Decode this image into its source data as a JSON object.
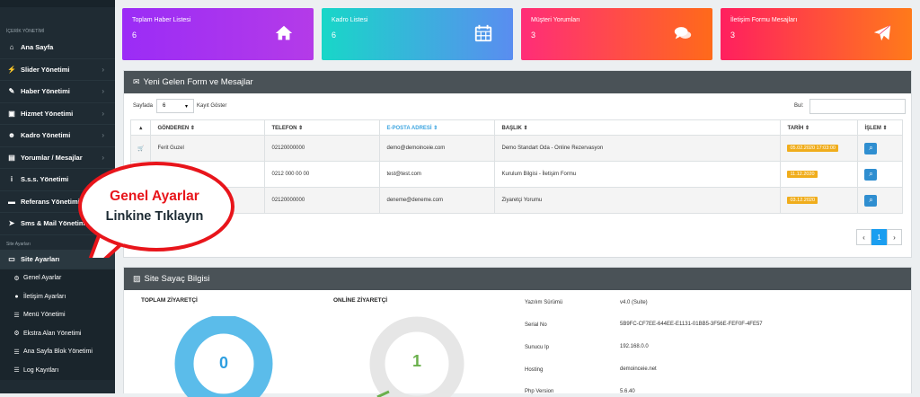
{
  "sidebar": {
    "section_content": "İÇERİK YÖNETİMİ",
    "items": [
      {
        "label": "Ana Sayfa",
        "icon": "home-icon"
      },
      {
        "label": "Slider Yönetimi",
        "icon": "slider-icon"
      },
      {
        "label": "Haber Yönetimi",
        "icon": "news-icon"
      },
      {
        "label": "Hizmet Yönetimi",
        "icon": "briefcase-icon"
      },
      {
        "label": "Kadro Yönetimi",
        "icon": "users-icon"
      },
      {
        "label": "Yorumlar / Mesajlar",
        "icon": "comments-icon"
      },
      {
        "label": "S.s.s. Yönetimi",
        "icon": "info-icon"
      },
      {
        "label": "Referans Yönetimi",
        "icon": "reference-icon"
      },
      {
        "label": "Sms & Mail Yönetimi",
        "icon": "send-icon"
      }
    ],
    "section_settings": "Site Ayarları",
    "settings_item": "Site Ayarları",
    "sub_items": [
      {
        "label": "Genel Ayarlar",
        "icon": "cogs-icon"
      },
      {
        "label": "İletişim Ayarları",
        "icon": "map-marker-icon"
      },
      {
        "label": "Menü Yönetimi",
        "icon": "list-icon"
      },
      {
        "label": "Ekstra Alan Yönetimi",
        "icon": "cogs-icon"
      },
      {
        "label": "Ana Sayfa Blok Yönetimi",
        "icon": "list-icon"
      },
      {
        "label": "Log Kayıtları",
        "icon": "list-icon"
      }
    ]
  },
  "cards": [
    {
      "title": "Toplam Haber Listesi",
      "value": "6",
      "icon": "home-icon",
      "color_from": "#9b2cf6",
      "color_to": "#b43be8"
    },
    {
      "title": "Kadro Listesi",
      "value": "6",
      "icon": "calendar-icon",
      "color_from": "#18d7c8",
      "color_to": "#5a8df0"
    },
    {
      "title": "Müşteri Yorumları",
      "value": "3",
      "icon": "comments-icon",
      "color_from": "#ff2d78",
      "color_to": "#ff6a1a"
    },
    {
      "title": "İletişim Formu Mesajları",
      "value": "3",
      "icon": "paper-plane-icon",
      "color_from": "#ff1f5f",
      "color_to": "#ff7a1a"
    }
  ],
  "messages_panel": {
    "title": "Yeni Gelen Form ve Mesajlar",
    "page_label": "Sayfada",
    "page_size": "6",
    "records_label": "Kayıt Göster",
    "search_label": "Bul:",
    "columns": [
      "",
      "GÖNDEREN ⇕",
      "TELEFON ⇕",
      "E-POSTA ADRESİ ⇕",
      "BAŞLIK ⇕",
      "TARİH ⇕",
      "İŞLEM ⇕"
    ],
    "rows": [
      {
        "sender": "Ferit Guzel",
        "phone": "02120000000",
        "email": "demo@demoinceie.com",
        "subject": "Demo Standart Oda - Online Rezervasyon",
        "date": "05.02.2020 17:03:00"
      },
      {
        "sender": "",
        "phone": "0212 000 00 00",
        "email": "test@test.com",
        "subject": "Kurulum Bilgisi - İletişim Formu",
        "date": "11.12.2020"
      },
      {
        "sender": "",
        "phone": "02120000000",
        "email": "deneme@deneme.com",
        "subject": "Ziyaretçi Yorumu",
        "date": "03.12.2020"
      }
    ],
    "pager": {
      "prev": "‹",
      "current": "1",
      "next": "›"
    }
  },
  "stats_panel": {
    "title": "Site Sayaç Bilgisi",
    "total_label": "TOPLAM ZİYARETÇİ",
    "total_value": "0",
    "online_label": "ONLİNE ZİYARETÇİ",
    "online_value": "1",
    "info": [
      {
        "label": "Yazılım Sürümü",
        "value": "v4.0 (Suite)"
      },
      {
        "label": "Serial No",
        "value": "5B9FC-CF7EE-644EE-E1131-01BB5-3F56E-FEF0F-4FE57"
      },
      {
        "label": "Sunucu Ip",
        "value": "192.168.0.0"
      },
      {
        "label": "Hosting",
        "value": "demoinceie.net"
      },
      {
        "label": "Php Version",
        "value": "5.6.40"
      }
    ]
  },
  "callout": {
    "line1": "Genel Ayarlar",
    "line2": "Linkine Tıklayın",
    "color": "#e8151b"
  }
}
